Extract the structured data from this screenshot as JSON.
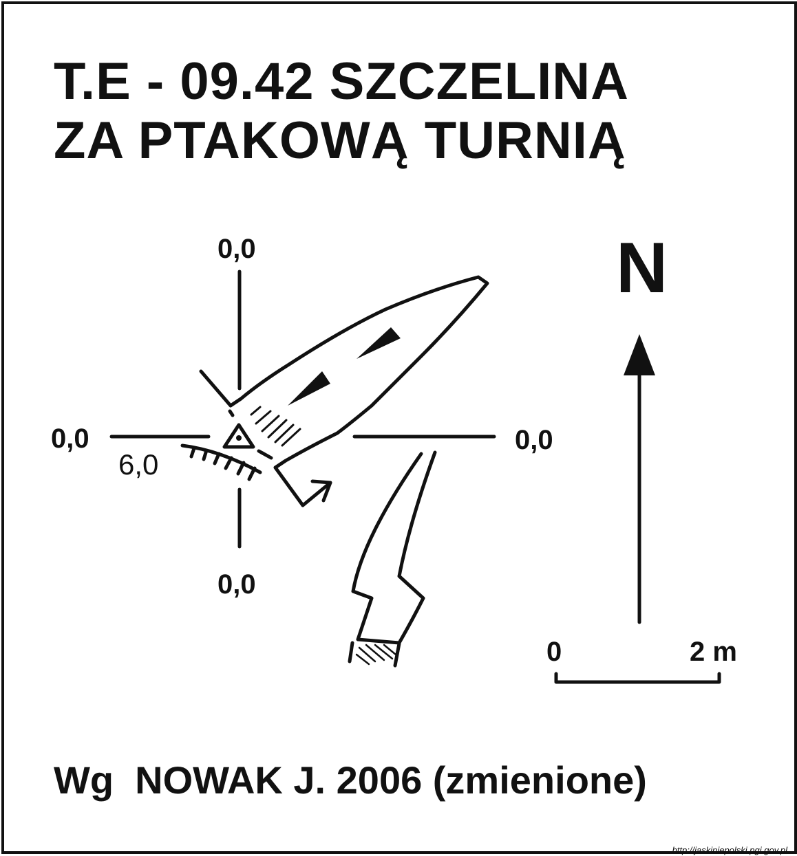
{
  "title": {
    "line1": "T.E - 09.42  SZCZELINA",
    "line2": "ZA PTAKOWĄ TURNIĄ"
  },
  "axis_labels": {
    "top": "0,0",
    "left": "0,0",
    "right": "0,0",
    "bottom": "0,0"
  },
  "entrance_depth": "6,0",
  "north_label": "N",
  "scale": {
    "start": "0",
    "end": "2 m"
  },
  "source": "Wg  NOWAK J. 2006 (zmienione)",
  "url": "http://jaskiniepolski.pgi.gov.pl"
}
